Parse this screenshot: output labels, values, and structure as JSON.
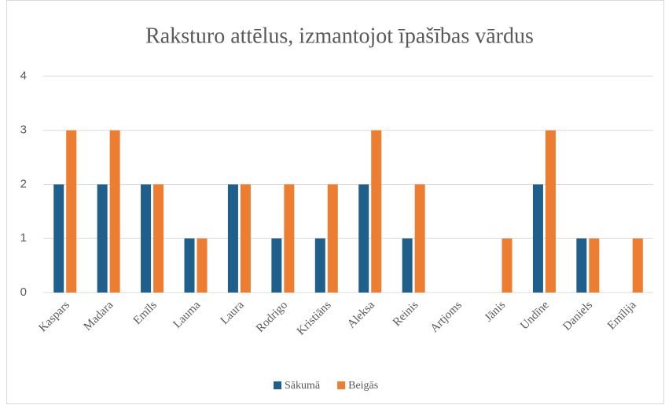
{
  "chart_data": {
    "type": "bar",
    "title": "Raksturo attēlus, izmantojot īpašības vārdus",
    "categories": [
      "Kaspars",
      "Madara",
      "Emīls",
      "Lauma",
      "Laura",
      "Rodrigo",
      "Kristiāns",
      "Aleksa",
      "Reinis",
      "Artjoms",
      "Jānis",
      "Undīne",
      "Daniels",
      "Emīlija"
    ],
    "series": [
      {
        "name": "Sākumā",
        "color": "#1f5f8b",
        "values": [
          2,
          2,
          2,
          1,
          2,
          1,
          1,
          2,
          1,
          0,
          0,
          2,
          1,
          0
        ]
      },
      {
        "name": "Beigās",
        "color": "#ed7d31",
        "values": [
          3,
          3,
          2,
          1,
          2,
          2,
          2,
          3,
          2,
          0,
          1,
          3,
          1,
          1
        ]
      }
    ],
    "ylim": [
      0,
      4
    ],
    "yticks": [
      0,
      1,
      2,
      3,
      4
    ],
    "grid": true,
    "legend": "bottom"
  }
}
